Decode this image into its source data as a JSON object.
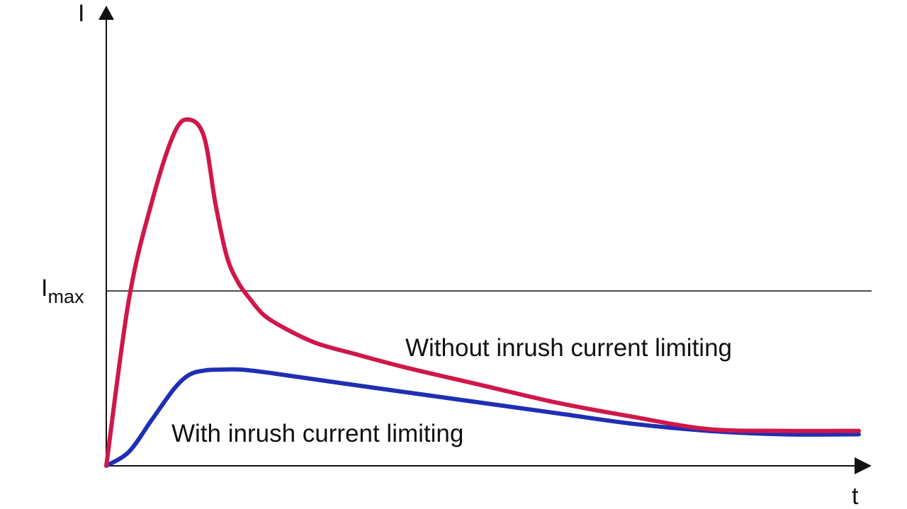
{
  "chart_data": {
    "type": "line",
    "x_axis_label": "t",
    "y_axis_label": "I",
    "threshold": {
      "label_main": "I",
      "label_sub": "max",
      "value": 1.0
    },
    "xlim": [
      0,
      10
    ],
    "ylim": [
      0,
      2.0
    ],
    "grid": false,
    "series": [
      {
        "name": "Without inrush current limiting",
        "color": "#d0174a",
        "x": [
          0,
          0.3,
          0.6,
          0.9,
          1.1,
          1.3,
          1.45,
          1.6,
          1.75,
          1.9,
          2.1,
          2.4,
          2.8,
          3.3,
          4.0,
          5.0,
          6.0,
          7.0,
          8.0,
          9.0,
          10.0
        ],
        "y": [
          0,
          0.95,
          1.5,
          1.9,
          1.98,
          1.88,
          1.5,
          1.2,
          1.05,
          0.96,
          0.86,
          0.78,
          0.7,
          0.64,
          0.56,
          0.46,
          0.36,
          0.28,
          0.21,
          0.2,
          0.2
        ]
      },
      {
        "name": "With inrush current limiting",
        "color": "#1f2fb3",
        "x": [
          0,
          0.3,
          0.6,
          0.9,
          1.1,
          1.3,
          1.5,
          1.8,
          2.2,
          3.0,
          4.0,
          5.0,
          6.0,
          7.0,
          8.0,
          9.0,
          10.0
        ],
        "y": [
          0,
          0.08,
          0.26,
          0.44,
          0.52,
          0.545,
          0.55,
          0.55,
          0.53,
          0.48,
          0.42,
          0.36,
          0.3,
          0.24,
          0.2,
          0.18,
          0.18
        ]
      }
    ]
  }
}
